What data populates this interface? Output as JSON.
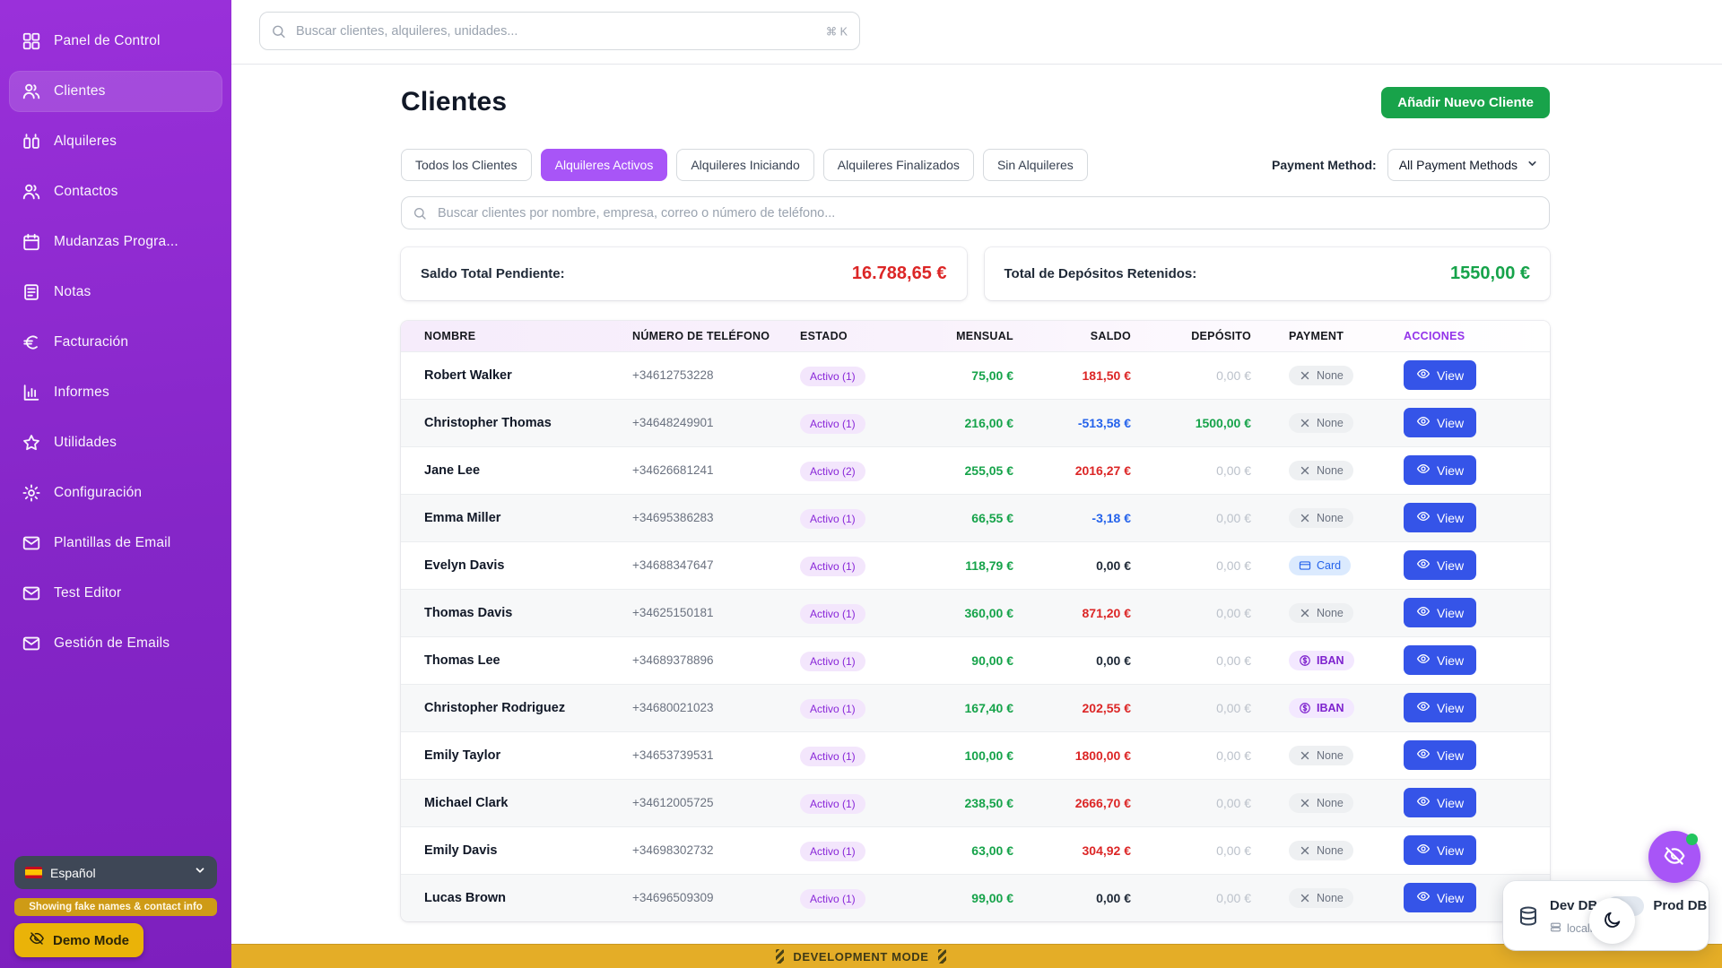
{
  "sidebar": {
    "items": [
      {
        "name": "panel-de-control",
        "label": "Panel de Control",
        "icon": "dashboard-icon",
        "active": false
      },
      {
        "name": "clientes",
        "label": "Clientes",
        "icon": "users-icon",
        "active": true
      },
      {
        "name": "alquileres",
        "label": "Alquileres",
        "icon": "units-icon",
        "active": false
      },
      {
        "name": "contactos",
        "label": "Contactos",
        "icon": "contacts-icon",
        "active": false
      },
      {
        "name": "mudanzas",
        "label": "Mudanzas Progra...",
        "icon": "calendar-icon",
        "active": false
      },
      {
        "name": "notas",
        "label": "Notas",
        "icon": "notes-icon",
        "active": false
      },
      {
        "name": "facturacion",
        "label": "Facturación",
        "icon": "euro-icon",
        "active": false
      },
      {
        "name": "informes",
        "label": "Informes",
        "icon": "chart-icon",
        "active": false
      },
      {
        "name": "utilidades",
        "label": "Utilidades",
        "icon": "star-icon",
        "active": false
      },
      {
        "name": "configuracion",
        "label": "Configuración",
        "icon": "gear-icon",
        "active": false
      },
      {
        "name": "plantillas-email",
        "label": "Plantillas de Email",
        "icon": "mail-icon",
        "active": false
      },
      {
        "name": "test-editor",
        "label": "Test Editor",
        "icon": "mail-icon",
        "active": false
      },
      {
        "name": "gestion-emails",
        "label": "Gestión de Emails",
        "icon": "mail-icon",
        "active": false
      }
    ],
    "language": "Español",
    "fake_notice": "Showing fake names & contact info",
    "demo_mode_label": "Demo Mode"
  },
  "topbar": {
    "search_placeholder": "Buscar clientes, alquileres, unidades...",
    "shortcut": "⌘ K"
  },
  "header": {
    "title": "Clientes",
    "add_button": "Añadir Nuevo Cliente"
  },
  "filters": {
    "tabs": [
      "Todos los Clientes",
      "Alquileres Activos",
      "Alquileres Iniciando",
      "Alquileres Finalizados",
      "Sin Alquileres"
    ],
    "active_tab": "Alquileres Activos",
    "payment_method_label": "Payment Method:",
    "payment_method_value": "All Payment Methods"
  },
  "list_search": {
    "placeholder": "Buscar clientes por nombre, empresa, correo o número de teléfono..."
  },
  "stats": {
    "pending": {
      "label": "Saldo Total Pendiente:",
      "value": "16.788,65 €"
    },
    "deposits": {
      "label": "Total de Depósitos Retenidos:",
      "value": "1550,00 €"
    }
  },
  "table": {
    "columns": {
      "name": "NOMBRE",
      "phone": "NÚMERO DE TELÉFONO",
      "status": "ESTADO",
      "monthly": "MENSUAL",
      "balance": "SALDO",
      "deposit": "DEPÓSITO",
      "payment": "PAYMENT",
      "actions": "ACCIONES"
    },
    "view_label": "View",
    "rows": [
      {
        "name": "Robert Walker",
        "phone": "+34612753228",
        "status": "Activo (1)",
        "monthly": "75,00 €",
        "balance": "181,50 €",
        "balance_type": "pos",
        "deposit": "0,00 €",
        "deposit_type": "zero",
        "payment": "None"
      },
      {
        "name": "Christopher Thomas",
        "phone": "+34648249901",
        "status": "Activo (1)",
        "monthly": "216,00 €",
        "balance": "-513,58 €",
        "balance_type": "neg",
        "deposit": "1500,00 €",
        "deposit_type": "pos",
        "payment": "None"
      },
      {
        "name": "Jane Lee",
        "phone": "+34626681241",
        "status": "Activo (2)",
        "monthly": "255,05 €",
        "balance": "2016,27 €",
        "balance_type": "pos",
        "deposit": "0,00 €",
        "deposit_type": "zero",
        "payment": "None"
      },
      {
        "name": "Emma Miller",
        "phone": "+34695386283",
        "status": "Activo (1)",
        "monthly": "66,55 €",
        "balance": "-3,18 €",
        "balance_type": "neg",
        "deposit": "0,00 €",
        "deposit_type": "zero",
        "payment": "None"
      },
      {
        "name": "Evelyn Davis",
        "phone": "+34688347647",
        "status": "Activo (1)",
        "monthly": "118,79 €",
        "balance": "0,00 €",
        "balance_type": "zero",
        "deposit": "0,00 €",
        "deposit_type": "zero",
        "payment": "Card"
      },
      {
        "name": "Thomas Davis",
        "phone": "+34625150181",
        "status": "Activo (1)",
        "monthly": "360,00 €",
        "balance": "871,20 €",
        "balance_type": "pos",
        "deposit": "0,00 €",
        "deposit_type": "zero",
        "payment": "None"
      },
      {
        "name": "Thomas Lee",
        "phone": "+34689378896",
        "status": "Activo (1)",
        "monthly": "90,00 €",
        "balance": "0,00 €",
        "balance_type": "zero",
        "deposit": "0,00 €",
        "deposit_type": "zero",
        "payment": "IBAN"
      },
      {
        "name": "Christopher Rodriguez",
        "phone": "+34680021023",
        "status": "Activo (1)",
        "monthly": "167,40 €",
        "balance": "202,55 €",
        "balance_type": "pos",
        "deposit": "0,00 €",
        "deposit_type": "zero",
        "payment": "IBAN"
      },
      {
        "name": "Emily Taylor",
        "phone": "+34653739531",
        "status": "Activo (1)",
        "monthly": "100,00 €",
        "balance": "1800,00 €",
        "balance_type": "pos",
        "deposit": "0,00 €",
        "deposit_type": "zero",
        "payment": "None"
      },
      {
        "name": "Michael Clark",
        "phone": "+34612005725",
        "status": "Activo (1)",
        "monthly": "238,50 €",
        "balance": "2666,70 €",
        "balance_type": "pos",
        "deposit": "0,00 €",
        "deposit_type": "zero",
        "payment": "None"
      },
      {
        "name": "Emily Davis",
        "phone": "+34698302732",
        "status": "Activo (1)",
        "monthly": "63,00 €",
        "balance": "304,92 €",
        "balance_type": "pos",
        "deposit": "0,00 €",
        "deposit_type": "zero",
        "payment": "None"
      },
      {
        "name": "Lucas Brown",
        "phone": "+34696509309",
        "status": "Activo (1)",
        "monthly": "99,00 €",
        "balance": "0,00 €",
        "balance_type": "zero",
        "deposit": "0,00 €",
        "deposit_type": "zero",
        "payment": "None"
      }
    ]
  },
  "footer": {
    "dev_bar": "DEVELOPMENT MODE",
    "db_widget": {
      "dev": "Dev DB",
      "prod": "Prod DB",
      "host": "localhost"
    }
  },
  "colors": {
    "sidebar_purple": "#8b27cc",
    "accent_purple": "#a855f7",
    "green": "#16a34a",
    "red": "#dc2626",
    "blue_negative": "#2563eb",
    "view_blue": "#3554e8",
    "warning_yellow": "#eab308",
    "devbar_yellow": "#e4ad27"
  }
}
